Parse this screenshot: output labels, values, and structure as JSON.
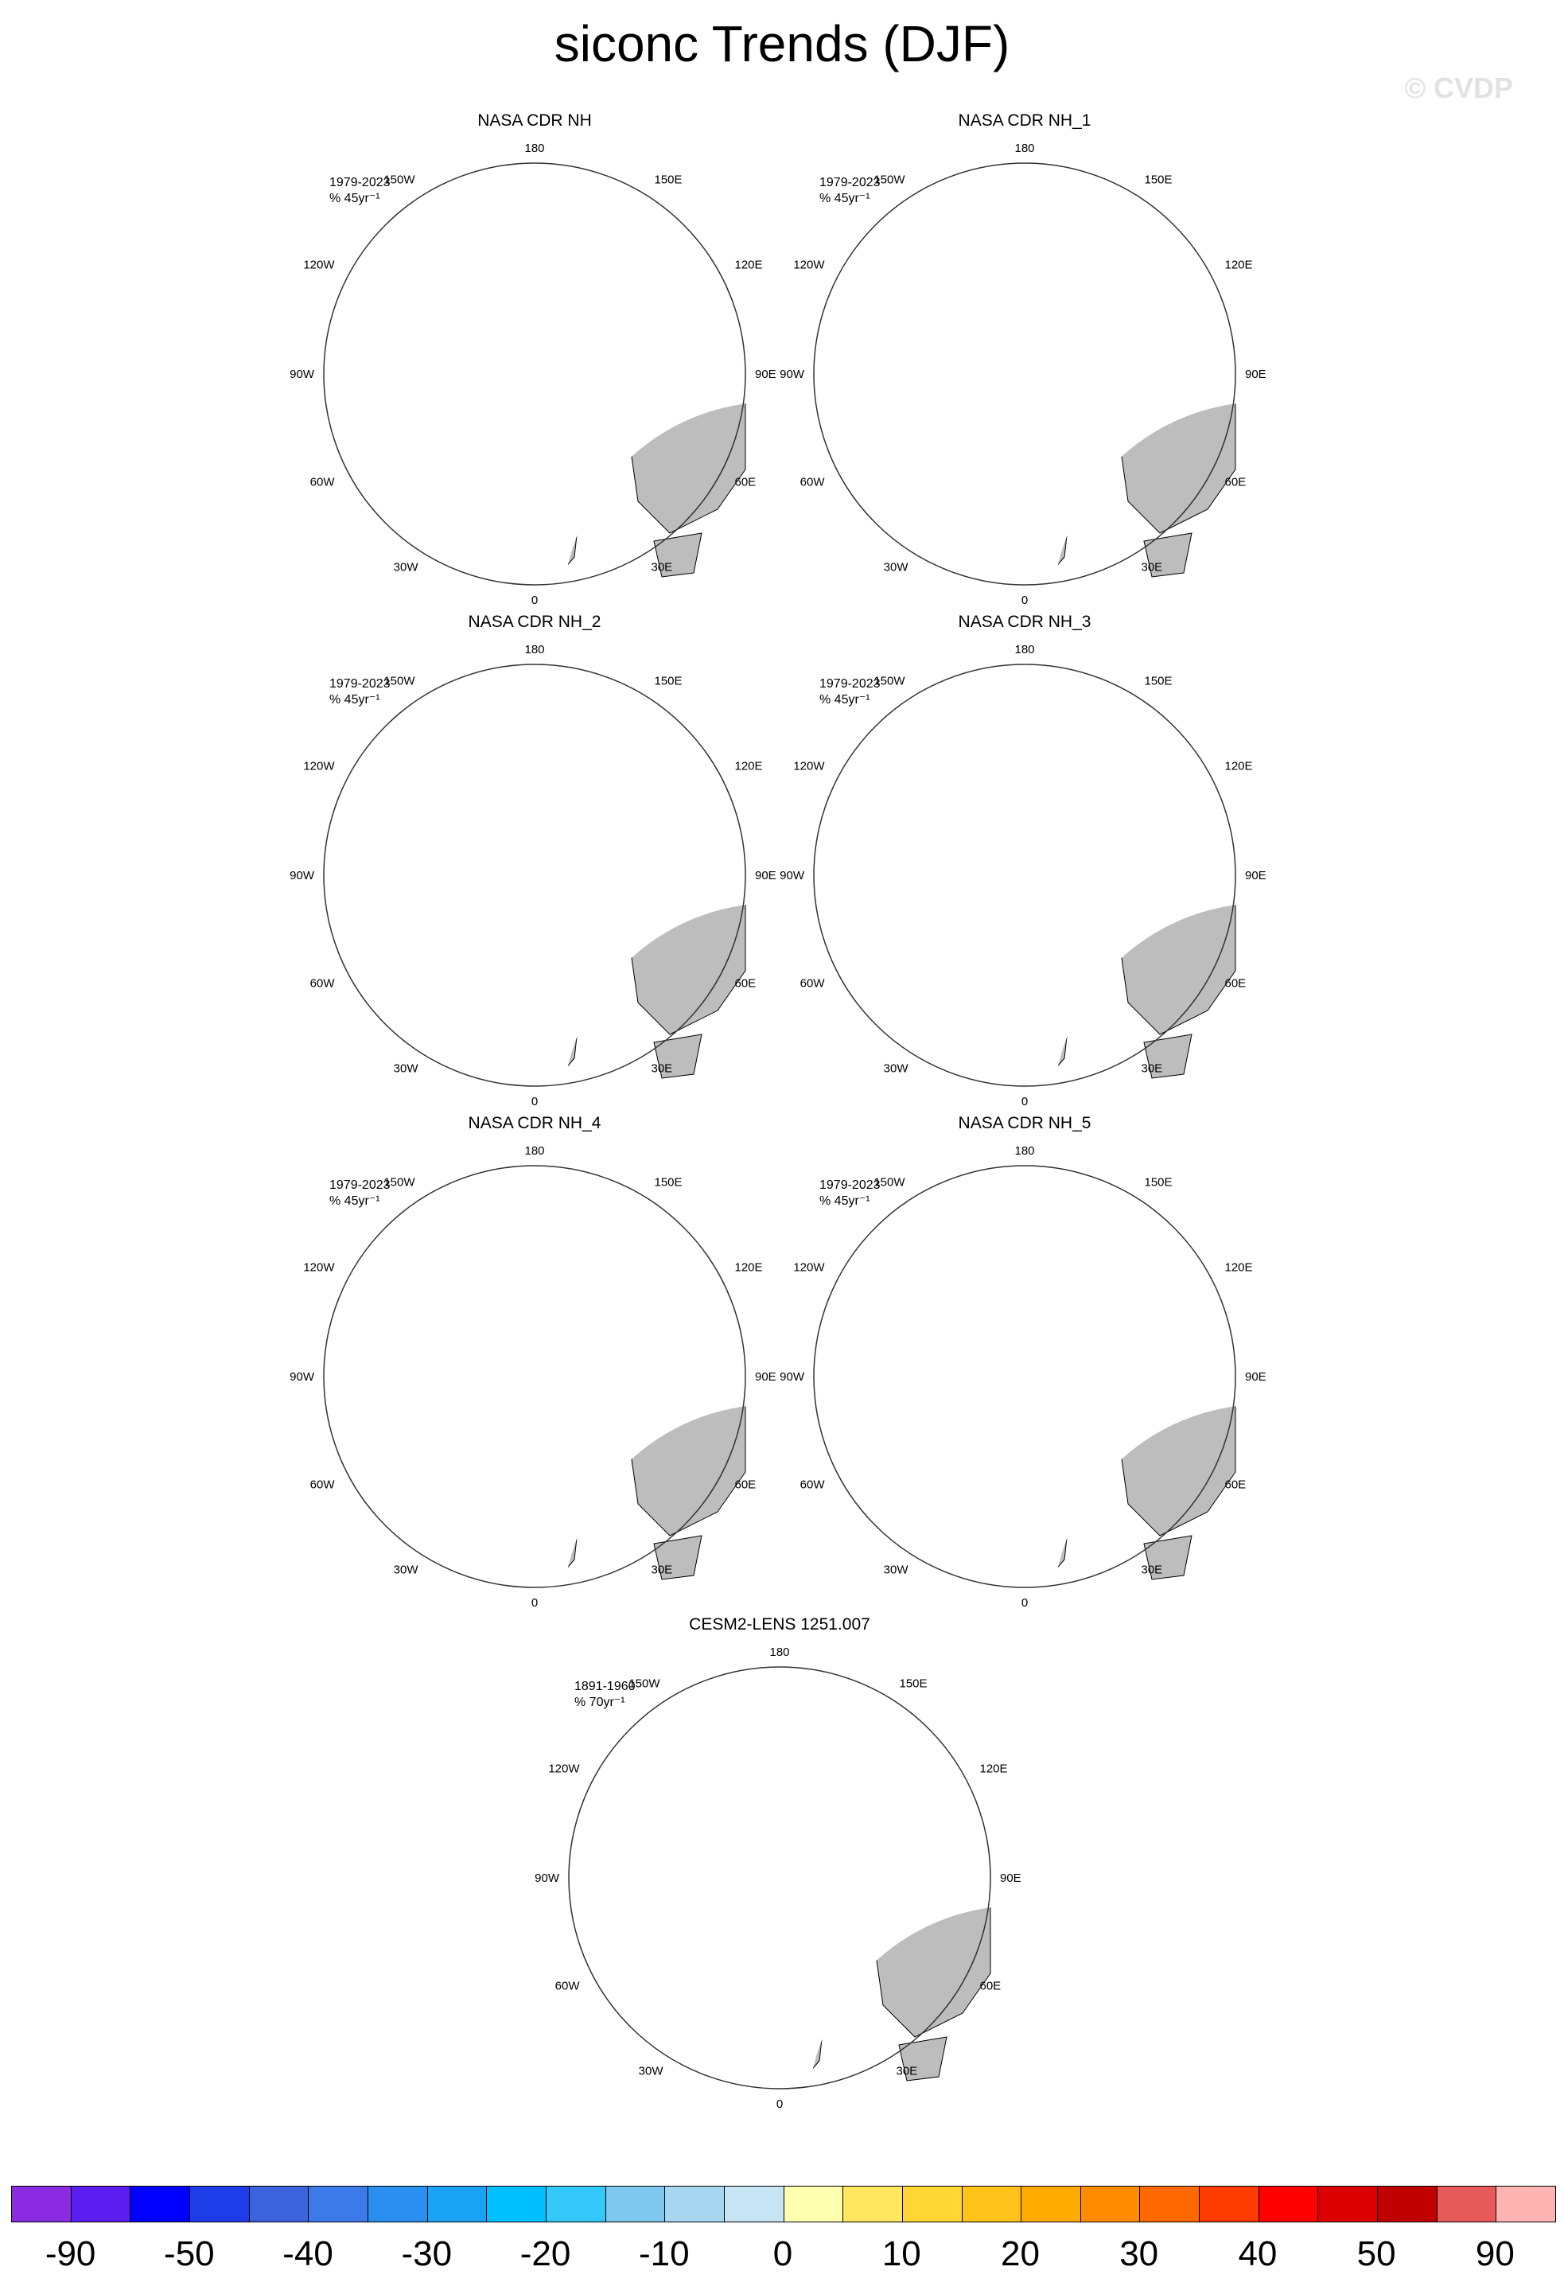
{
  "title": "siconc Trends (DJF)",
  "watermark": "© CVDP",
  "lon_labels": {
    "180": "180",
    "150E": "150E",
    "120E": "120E",
    "90E": "90E",
    "60E": "60E",
    "30E": "30E",
    "0": "0",
    "30W": "30W",
    "60W": "60W",
    "90W": "90W",
    "120W": "120W",
    "150W": "150W"
  },
  "panels": [
    {
      "title": "NASA CDR NH",
      "period": "1979-2023",
      "units": "% 45yr⁻¹",
      "kind": "obs"
    },
    {
      "title": "NASA CDR NH_1",
      "period": "1979-2023",
      "units": "% 45yr⁻¹",
      "kind": "obs"
    },
    {
      "title": "NASA CDR NH_2",
      "period": "1979-2023",
      "units": "% 45yr⁻¹",
      "kind": "obs"
    },
    {
      "title": "NASA CDR NH_3",
      "period": "1979-2023",
      "units": "% 45yr⁻¹",
      "kind": "obs"
    },
    {
      "title": "NASA CDR NH_4",
      "period": "1979-2023",
      "units": "% 45yr⁻¹",
      "kind": "obs"
    },
    {
      "title": "NASA CDR NH_5",
      "period": "1979-2023",
      "units": "% 45yr⁻¹",
      "kind": "obs"
    },
    {
      "title": "CESM2-LENS 1251.007",
      "period": "1891-1960",
      "units": "% 70yr⁻¹",
      "kind": "model"
    }
  ],
  "colorbar": {
    "colors": [
      "#8a2be2",
      "#5b1ef0",
      "#0000ff",
      "#1e3de8",
      "#3c62dc",
      "#3b7ae8",
      "#2b8ff0",
      "#1aa3f5",
      "#00bfff",
      "#33c8f8",
      "#7ec8f0",
      "#a6d6f0",
      "#c6e4f4",
      "#ffffb0",
      "#ffe860",
      "#ffd633",
      "#ffc21a",
      "#ffaa00",
      "#ff8c00",
      "#ff6a00",
      "#ff3c00",
      "#ff0000",
      "#dc0000",
      "#c00000",
      "#e65a5a",
      "#ffb4b4"
    ],
    "labels": [
      "-90",
      "-50",
      "-40",
      "-30",
      "-20",
      "-10",
      "0",
      "10",
      "20",
      "30",
      "40",
      "50",
      "90"
    ]
  }
}
